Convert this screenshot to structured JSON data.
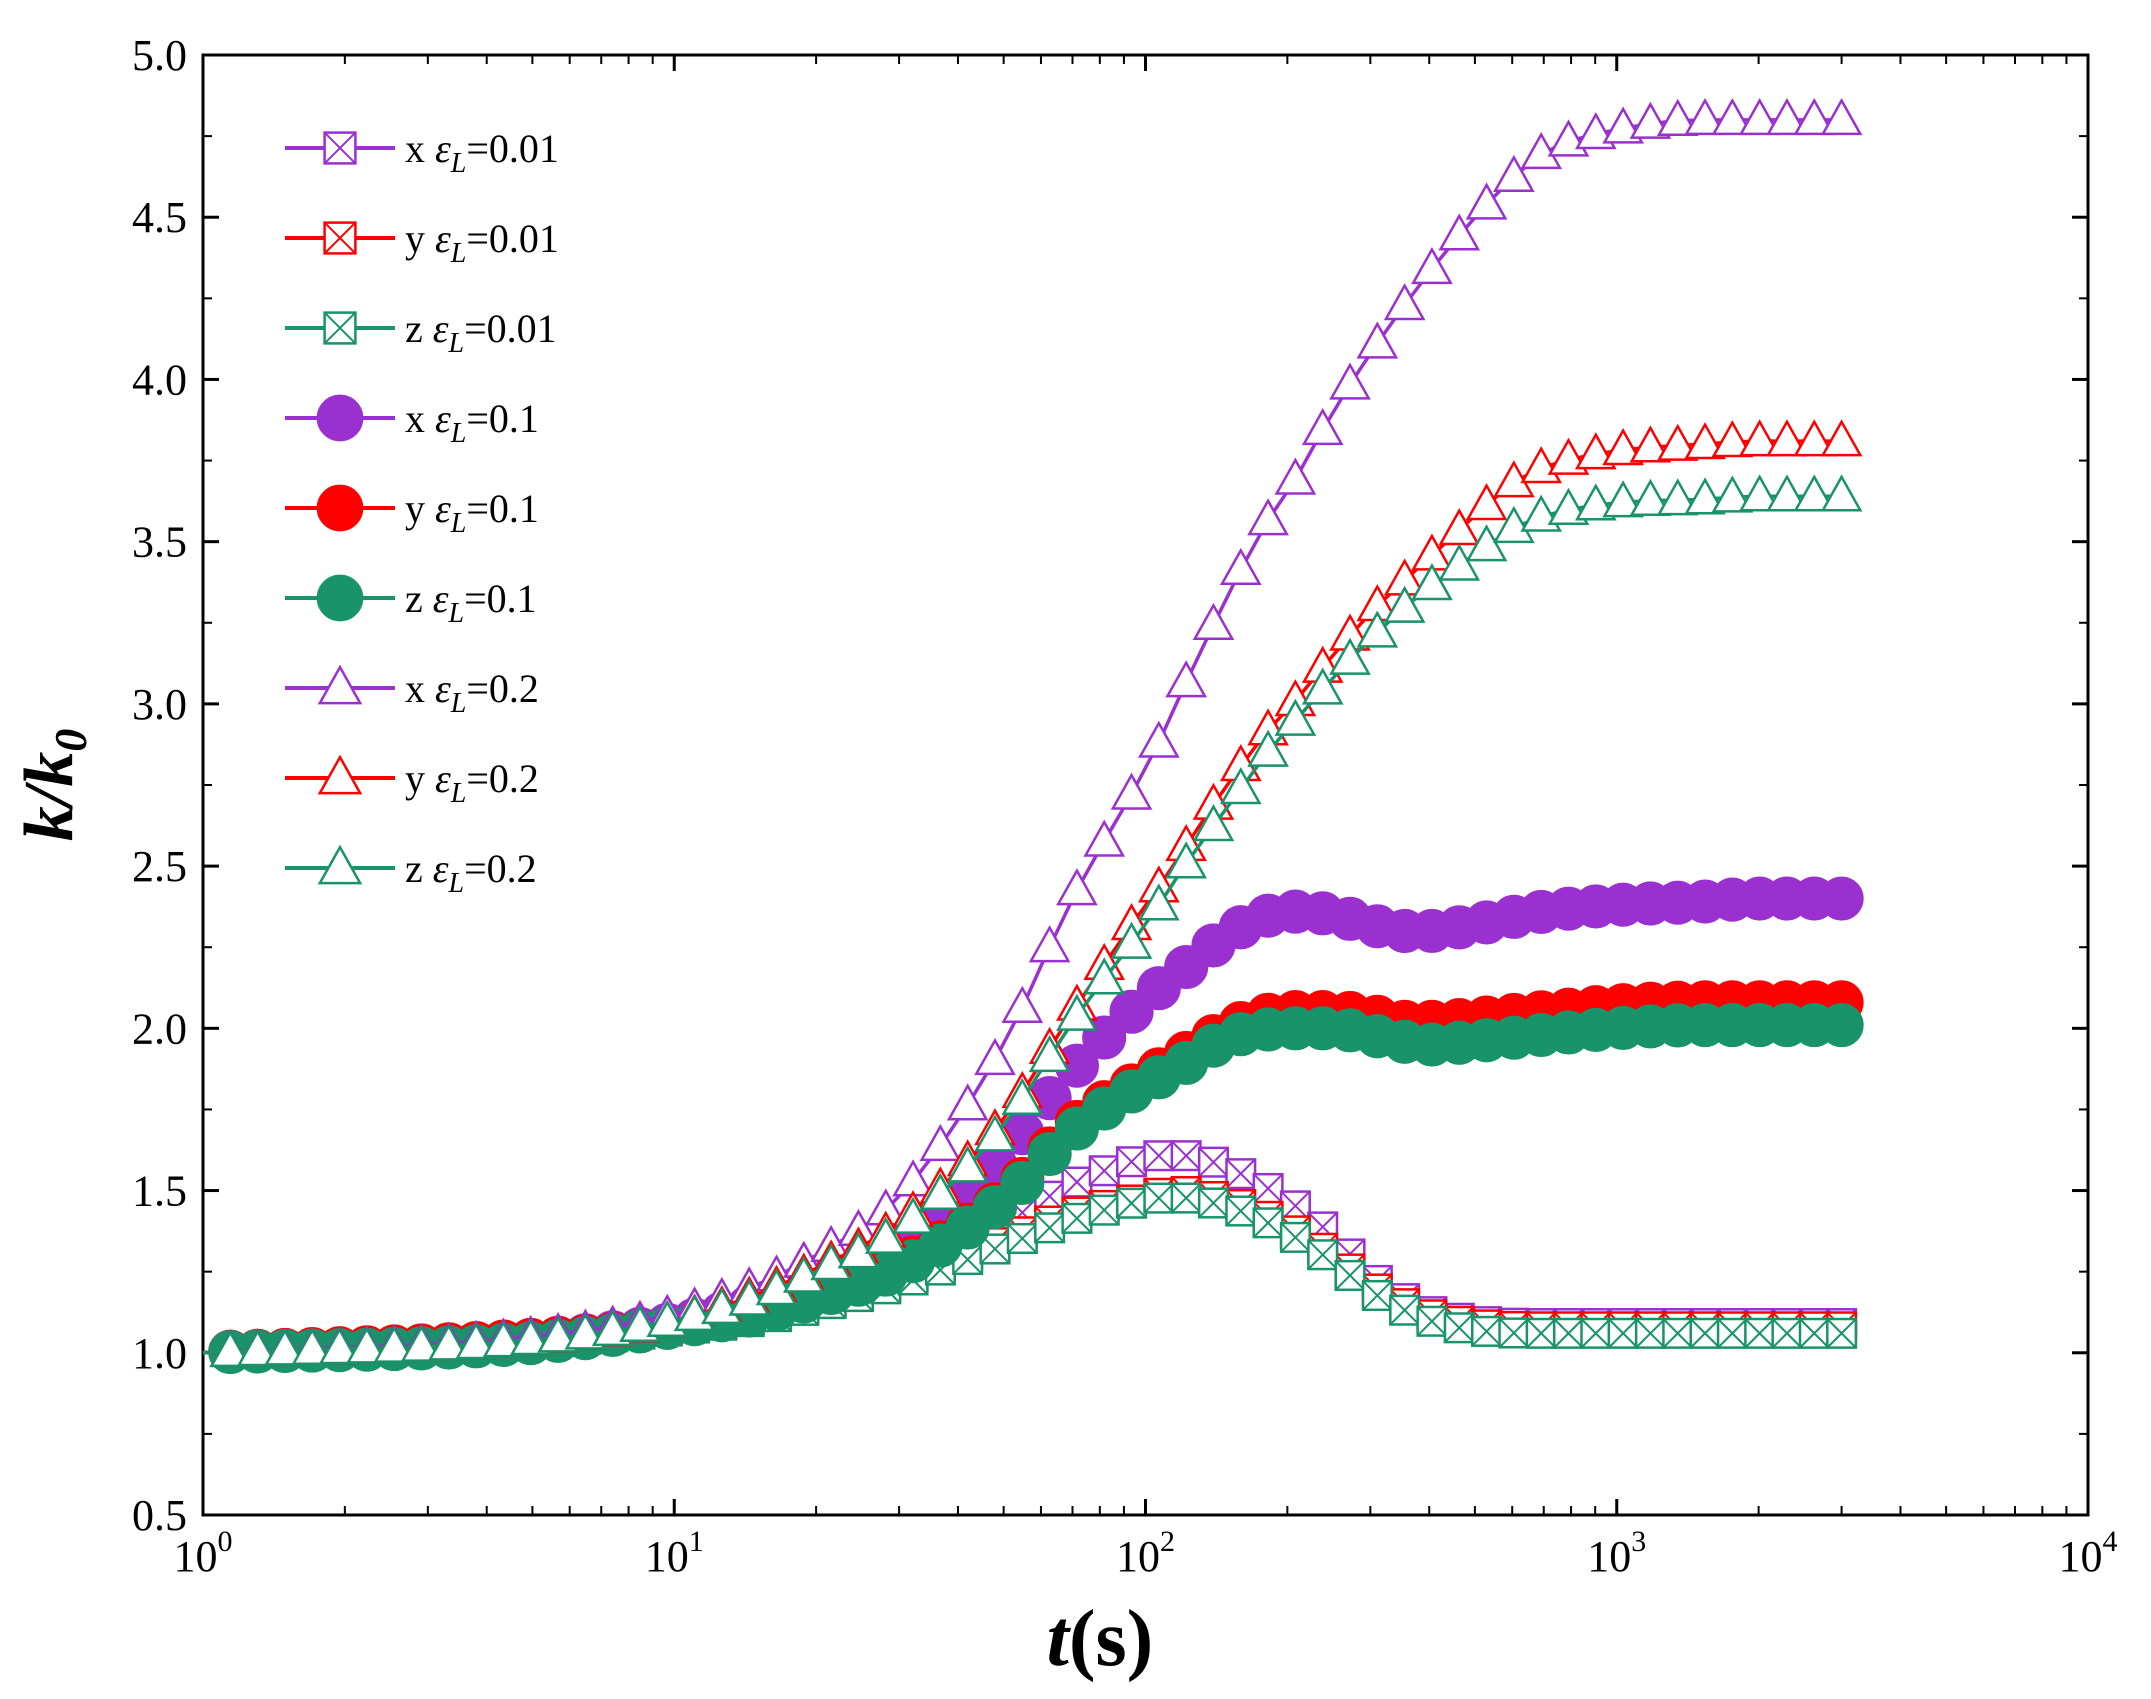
{
  "chart_data": {
    "type": "line",
    "xscale": "log",
    "xlim": [
      1,
      10000
    ],
    "ylim": [
      0.5,
      5.0
    ],
    "xlabel": {
      "main": "t",
      "unit": "(s)"
    },
    "ylabel": {
      "k": "k",
      "slash": "/",
      "k0": "k",
      "sub": "0"
    },
    "xticks": [
      {
        "value": 1,
        "base": "10",
        "exp": "0"
      },
      {
        "value": 10,
        "base": "10",
        "exp": "1"
      },
      {
        "value": 100,
        "base": "10",
        "exp": "2"
      },
      {
        "value": 1000,
        "base": "10",
        "exp": "3"
      },
      {
        "value": 10000,
        "base": "10",
        "exp": "4"
      }
    ],
    "yticks": [
      "0.5",
      "1.0",
      "1.5",
      "2.0",
      "2.5",
      "3.0",
      "3.5",
      "4.0",
      "4.5",
      "5.0"
    ],
    "colors": {
      "x": "#9b30d0",
      "y": "#ff0000",
      "z": "#18936a"
    },
    "eps_symbol": "ε",
    "eps_sub": "L",
    "series": [
      {
        "name": "x εL=0.01",
        "dir": "x",
        "eps": "0.01",
        "marker": "square-x",
        "color": "#9b30d0",
        "x": [
          1,
          5,
          10,
          15,
          20,
          30,
          50,
          70,
          100,
          115,
          130,
          150,
          170,
          200,
          250,
          300,
          400,
          500,
          700,
          1000,
          1500,
          2000,
          3000
        ],
        "y": [
          1.0,
          1.04,
          1.08,
          1.13,
          1.17,
          1.25,
          1.4,
          1.52,
          1.6,
          1.61,
          1.6,
          1.57,
          1.53,
          1.47,
          1.36,
          1.24,
          1.13,
          1.1,
          1.09,
          1.09,
          1.09,
          1.09,
          1.09
        ]
      },
      {
        "name": "y εL=0.01",
        "dir": "y",
        "eps": "0.01",
        "marker": "square-x",
        "color": "#ff0000",
        "x": [
          1,
          5,
          10,
          15,
          20,
          30,
          50,
          70,
          100,
          115,
          130,
          150,
          170,
          200,
          250,
          300,
          400,
          500,
          700,
          1000,
          1500,
          2000,
          3000
        ],
        "y": [
          1.0,
          1.03,
          1.07,
          1.11,
          1.15,
          1.22,
          1.35,
          1.43,
          1.48,
          1.5,
          1.49,
          1.47,
          1.44,
          1.39,
          1.3,
          1.21,
          1.12,
          1.09,
          1.08,
          1.08,
          1.08,
          1.08,
          1.08
        ]
      },
      {
        "name": "z εL=0.01",
        "dir": "z",
        "eps": "0.01",
        "marker": "square-x",
        "color": "#18936a",
        "x": [
          1,
          5,
          10,
          15,
          20,
          30,
          50,
          70,
          100,
          115,
          130,
          150,
          170,
          200,
          250,
          300,
          400,
          500,
          700,
          1000,
          1500,
          2000,
          3000
        ],
        "y": [
          1.0,
          1.03,
          1.07,
          1.1,
          1.14,
          1.21,
          1.33,
          1.41,
          1.47,
          1.48,
          1.47,
          1.45,
          1.42,
          1.37,
          1.28,
          1.19,
          1.1,
          1.07,
          1.06,
          1.06,
          1.06,
          1.06,
          1.06
        ]
      },
      {
        "name": "x εL=0.1",
        "dir": "x",
        "eps": "0.1",
        "marker": "circle",
        "color": "#9b30d0",
        "x": [
          1,
          5,
          10,
          15,
          20,
          30,
          50,
          70,
          100,
          115,
          130,
          150,
          170,
          200,
          250,
          300,
          350,
          400,
          500,
          700,
          1000,
          1500,
          2000,
          3000
        ],
        "y": [
          1.0,
          1.04,
          1.09,
          1.15,
          1.21,
          1.32,
          1.61,
          1.87,
          2.09,
          2.16,
          2.22,
          2.29,
          2.33,
          2.36,
          2.35,
          2.32,
          2.3,
          2.3,
          2.32,
          2.36,
          2.38,
          2.39,
          2.4,
          2.4
        ]
      },
      {
        "name": "y εL=0.1",
        "dir": "y",
        "eps": "0.1",
        "marker": "circle",
        "color": "#ff0000",
        "x": [
          1,
          5,
          10,
          15,
          20,
          30,
          50,
          70,
          100,
          115,
          130,
          150,
          170,
          200,
          250,
          300,
          350,
          400,
          500,
          700,
          1000,
          1500,
          2000,
          3000
        ],
        "y": [
          1.0,
          1.04,
          1.08,
          1.13,
          1.18,
          1.27,
          1.48,
          1.7,
          1.85,
          1.9,
          1.95,
          2.0,
          2.03,
          2.05,
          2.05,
          2.04,
          2.02,
          2.02,
          2.03,
          2.05,
          2.07,
          2.08,
          2.08,
          2.08
        ]
      },
      {
        "name": "z εL=0.1",
        "dir": "z",
        "eps": "0.1",
        "marker": "circle",
        "color": "#18936a",
        "x": [
          1,
          5,
          10,
          15,
          20,
          30,
          50,
          70,
          100,
          115,
          130,
          150,
          170,
          200,
          250,
          300,
          350,
          400,
          500,
          700,
          1000,
          1500,
          2000,
          3000
        ],
        "y": [
          1.0,
          1.03,
          1.08,
          1.12,
          1.17,
          1.26,
          1.47,
          1.68,
          1.83,
          1.87,
          1.92,
          1.97,
          1.99,
          2.0,
          2.0,
          1.98,
          1.96,
          1.95,
          1.96,
          1.98,
          2.0,
          2.01,
          2.01,
          2.01
        ]
      },
      {
        "name": "x εL=0.2",
        "dir": "x",
        "eps": "0.2",
        "marker": "triangle",
        "color": "#9b30d0",
        "x": [
          1,
          5,
          10,
          15,
          20,
          30,
          50,
          70,
          100,
          115,
          130,
          150,
          170,
          200,
          250,
          300,
          400,
          500,
          600,
          700,
          1000,
          1500,
          2000,
          3000
        ],
        "y": [
          1.0,
          1.05,
          1.12,
          1.21,
          1.3,
          1.48,
          1.95,
          2.4,
          2.8,
          2.98,
          3.16,
          3.33,
          3.5,
          3.65,
          3.9,
          4.08,
          4.33,
          4.5,
          4.62,
          4.7,
          4.77,
          4.8,
          4.8,
          4.8
        ]
      },
      {
        "name": "y εL=0.2",
        "dir": "y",
        "eps": "0.2",
        "marker": "triangle",
        "color": "#ff0000",
        "x": [
          1,
          5,
          10,
          15,
          20,
          30,
          50,
          70,
          100,
          115,
          130,
          150,
          170,
          200,
          250,
          300,
          400,
          500,
          600,
          700,
          1000,
          1500,
          2000,
          3000
        ],
        "y": [
          1.0,
          1.04,
          1.1,
          1.18,
          1.26,
          1.4,
          1.72,
          2.05,
          2.38,
          2.5,
          2.63,
          2.75,
          2.87,
          2.98,
          3.15,
          3.28,
          3.45,
          3.58,
          3.68,
          3.73,
          3.78,
          3.8,
          3.81,
          3.81
        ]
      },
      {
        "name": "z εL=0.2",
        "dir": "z",
        "eps": "0.2",
        "marker": "triangle",
        "color": "#18936a",
        "x": [
          1,
          5,
          10,
          15,
          20,
          30,
          50,
          70,
          100,
          115,
          130,
          150,
          170,
          200,
          250,
          300,
          400,
          500,
          600,
          700,
          1000,
          1500,
          2000,
          3000
        ],
        "y": [
          1.0,
          1.04,
          1.1,
          1.17,
          1.25,
          1.38,
          1.7,
          2.02,
          2.32,
          2.45,
          2.57,
          2.68,
          2.8,
          2.92,
          3.08,
          3.2,
          3.36,
          3.46,
          3.54,
          3.58,
          3.62,
          3.63,
          3.64,
          3.64
        ]
      }
    ]
  }
}
